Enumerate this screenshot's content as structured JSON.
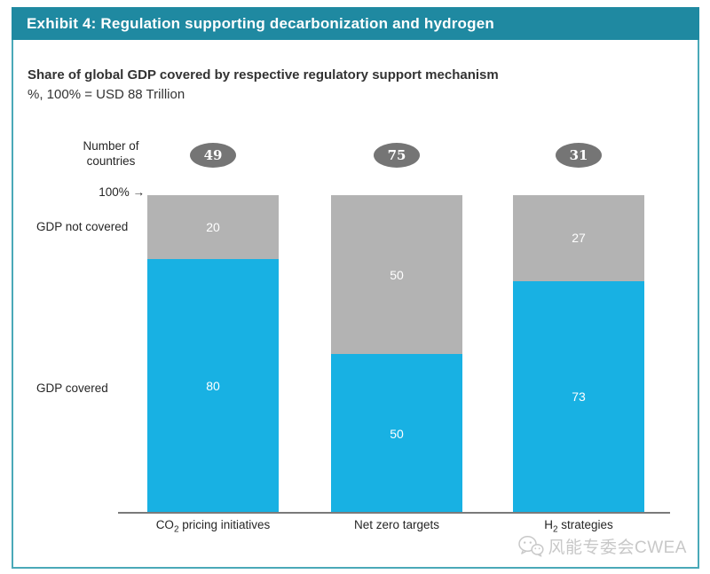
{
  "exhibit": {
    "header": "Exhibit 4: Regulation supporting decarbonization and hydrogen"
  },
  "labels": {
    "number_of_line1": "Number of",
    "number_of_line2": "countries",
    "y_marker": "100%",
    "arrow": "→",
    "gdp_not_covered": "GDP not covered",
    "gdp_covered": "GDP covered"
  },
  "chart_data": {
    "type": "bar",
    "stacked": true,
    "title": "Share of global GDP covered by respective regulatory support mechanism",
    "subtitle": "%, 100% = USD 88 Trillion",
    "categories": [
      "CO2 pricing initiatives",
      "Net zero targets",
      "H2 strategies"
    ],
    "category_parts": [
      [
        "CO",
        "2",
        " pricing initiatives"
      ],
      [
        "Net zero targets",
        "",
        ""
      ],
      [
        "H",
        "2",
        " strategies"
      ]
    ],
    "series": [
      {
        "name": "GDP not covered",
        "color": "#b3b3b3",
        "values": [
          20,
          50,
          27
        ]
      },
      {
        "name": "GDP covered",
        "color": "#18b1e3",
        "values": [
          80,
          50,
          73
        ]
      }
    ],
    "number_of_countries": [
      49,
      75,
      31
    ],
    "ylim": [
      0,
      100
    ],
    "unit": "% of global GDP",
    "total_note": "100% = USD 88 Trillion",
    "grid": false,
    "legend_position": "left"
  },
  "watermark": {
    "text": "风能专委会CWEA",
    "icon": "wechat-icon"
  },
  "colors": {
    "header_teal": "#1f89a1",
    "border_teal": "#4aa9b8",
    "covered_blue": "#18b1e3",
    "not_covered_gray": "#b3b3b3",
    "badge_gray": "#757575",
    "axis_gray": "#7a7a7a",
    "value_text": "#ffffff",
    "watermark_gray": "#c8c8c8"
  }
}
